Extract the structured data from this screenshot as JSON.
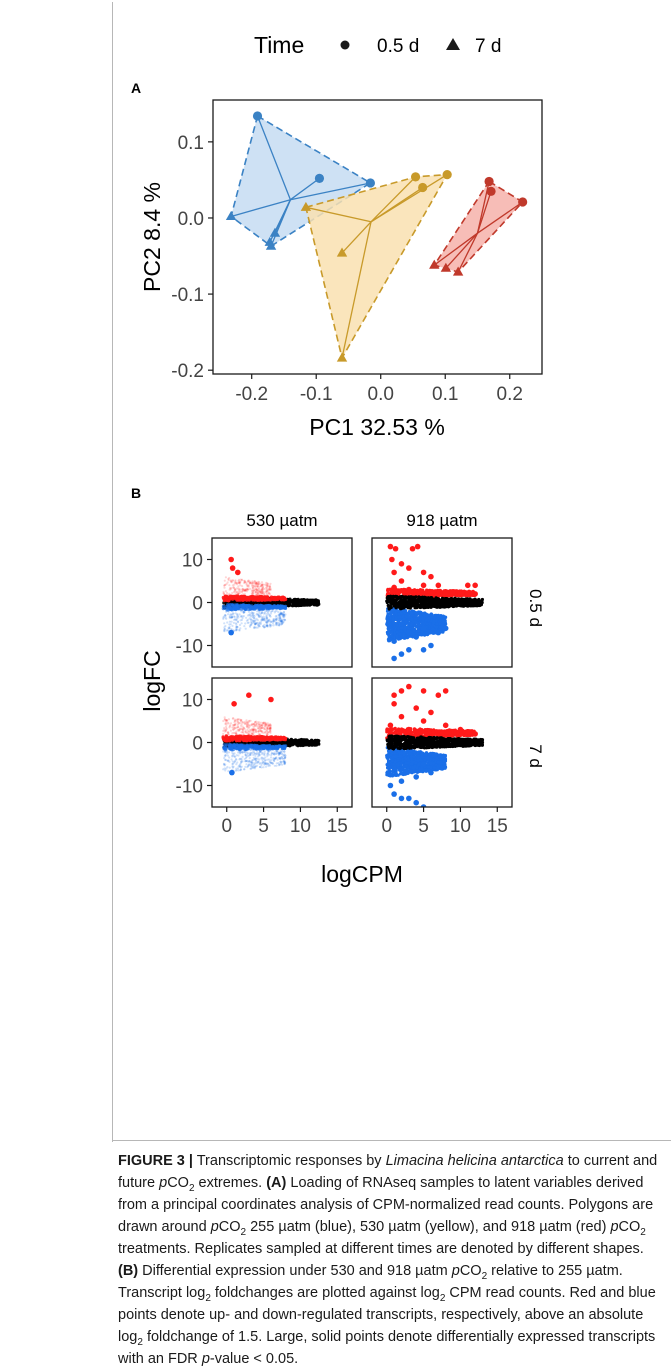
{
  "legend": {
    "title": "Time",
    "items": [
      {
        "shape": "circle",
        "label": "0.5 d"
      },
      {
        "shape": "triangle",
        "label": "7 d"
      }
    ]
  },
  "panel_labels": {
    "a": "A",
    "b": "B"
  },
  "colors": {
    "blue": "#3b82c4",
    "blue_fill": "#c5dcf2",
    "yellow": "#c89a2a",
    "yellow_fill": "#f9e1b0",
    "red": "#c0392b",
    "red_fill": "#f6b1aa",
    "up": "#ff1a1a",
    "down": "#1a6fe8",
    "ns": "#000000"
  },
  "chart_data": [
    {
      "type": "scatter",
      "panel": "A",
      "xlabel": "PC1 32.53 %",
      "ylabel": "PC2 8.4 %",
      "xlim": [
        -0.26,
        0.25
      ],
      "ylim": [
        -0.205,
        0.155
      ],
      "xticks": [
        "-0.2",
        "-0.1",
        "0.0",
        "0.1",
        "0.2"
      ],
      "xtick_values": [
        -0.2,
        -0.1,
        0.0,
        0.1,
        0.2
      ],
      "yticks": [
        "0.1",
        "0.0",
        "-0.1",
        "-0.2"
      ],
      "ytick_values": [
        0.1,
        0.0,
        -0.1,
        -0.2
      ],
      "groups": [
        {
          "color": "blue",
          "hull": [
            [
              -0.191,
              0.134
            ],
            [
              -0.016,
              0.046
            ],
            [
              -0.17,
              -0.037
            ],
            [
              -0.232,
              0.002
            ]
          ],
          "centroid": [
            -0.14,
            0.024
          ],
          "points": [
            {
              "shape": "circle",
              "x": -0.191,
              "y": 0.134
            },
            {
              "shape": "circle",
              "x": -0.095,
              "y": 0.052
            },
            {
              "shape": "circle",
              "x": -0.016,
              "y": 0.046
            },
            {
              "shape": "triangle",
              "x": -0.232,
              "y": 0.002
            },
            {
              "shape": "triangle",
              "x": -0.17,
              "y": -0.037
            },
            {
              "shape": "triangle",
              "x": -0.172,
              "y": -0.032
            },
            {
              "shape": "triangle",
              "x": -0.164,
              "y": -0.02
            }
          ]
        },
        {
          "color": "yellow",
          "hull": [
            [
              -0.116,
              0.014
            ],
            [
              0.054,
              0.054
            ],
            [
              0.103,
              0.057
            ],
            [
              -0.06,
              -0.184
            ]
          ],
          "centroid": [
            -0.015,
            -0.005
          ],
          "points": [
            {
              "shape": "circle",
              "x": 0.054,
              "y": 0.054
            },
            {
              "shape": "circle",
              "x": 0.065,
              "y": 0.04
            },
            {
              "shape": "circle",
              "x": 0.103,
              "y": 0.057
            },
            {
              "shape": "triangle",
              "x": -0.116,
              "y": 0.014
            },
            {
              "shape": "triangle",
              "x": -0.06,
              "y": -0.046
            },
            {
              "shape": "triangle",
              "x": -0.06,
              "y": -0.184
            }
          ]
        },
        {
          "color": "red",
          "hull": [
            [
              0.168,
              0.048
            ],
            [
              0.22,
              0.021
            ],
            [
              0.12,
              -0.071
            ],
            [
              0.083,
              -0.062
            ]
          ],
          "centroid": [
            0.15,
            -0.02
          ],
          "points": [
            {
              "shape": "circle",
              "x": 0.168,
              "y": 0.048
            },
            {
              "shape": "circle",
              "x": 0.171,
              "y": 0.035
            },
            {
              "shape": "circle",
              "x": 0.22,
              "y": 0.021
            },
            {
              "shape": "triangle",
              "x": 0.083,
              "y": -0.062
            },
            {
              "shape": "triangle",
              "x": 0.101,
              "y": -0.066
            },
            {
              "shape": "triangle",
              "x": 0.12,
              "y": -0.071
            }
          ]
        }
      ]
    },
    {
      "type": "scatter",
      "panel": "B",
      "xlabel": "logCPM",
      "ylabel": "logFC",
      "xlim": [
        -2,
        17
      ],
      "ylim": [
        -15,
        15
      ],
      "xticks": [
        "0",
        "5",
        "10",
        "15"
      ],
      "xtick_values": [
        0,
        5,
        10,
        15
      ],
      "yticks": [
        "10",
        "0",
        "-10"
      ],
      "ytick_values": [
        10,
        0,
        -10
      ],
      "column_labels": [
        "530 µatm",
        "918 µatm"
      ],
      "row_labels": [
        "0.5 d",
        "7 d"
      ],
      "facets": [
        {
          "col": 0,
          "row": 0,
          "up_points": [
            [
              0.6,
              10
            ],
            [
              0.8,
              8
            ],
            [
              1.5,
              7
            ]
          ],
          "down_points": [
            [
              0.6,
              -7
            ]
          ],
          "clouds": [
            {
              "color": "up",
              "x": [
                -0.5,
                6
              ],
              "y": [
                0.3,
                6
              ],
              "n": 300,
              "alpha": 0.18
            },
            {
              "color": "down",
              "x": [
                -0.5,
                8
              ],
              "y": [
                -7,
                -0.3
              ],
              "n": 380,
              "alpha": 0.2
            },
            {
              "color": "ns",
              "x": [
                -0.4,
                12.5
              ],
              "y": [
                -1.3,
                1.3
              ],
              "n": 600,
              "alpha": 0.9
            },
            {
              "color": "up",
              "x": [
                -0.5,
                8
              ],
              "y": [
                0.3,
                1.6
              ],
              "n": 250,
              "alpha": 0.9
            },
            {
              "color": "down",
              "x": [
                -0.5,
                8
              ],
              "y": [
                -1.8,
                -0.4
              ],
              "n": 200,
              "alpha": 0.7
            }
          ]
        },
        {
          "col": 1,
          "row": 0,
          "up_points": [
            [
              0.5,
              13
            ],
            [
              1.2,
              12.5
            ],
            [
              3.5,
              12.5
            ],
            [
              4.2,
              13
            ],
            [
              0.7,
              10
            ],
            [
              2,
              9
            ],
            [
              3,
              8
            ],
            [
              1,
              7
            ],
            [
              5,
              7
            ],
            [
              6,
              6
            ],
            [
              2,
              5
            ],
            [
              5,
              4
            ],
            [
              7,
              4
            ],
            [
              11,
              4
            ],
            [
              12,
              4
            ],
            [
              1,
              3.5
            ],
            [
              3,
              3
            ],
            [
              6,
              2.5
            ],
            [
              8,
              2.5
            ],
            [
              9,
              2.5
            ],
            [
              10,
              2
            ],
            [
              11,
              2
            ],
            [
              12,
              2
            ]
          ],
          "down_points": [
            [
              1,
              -13
            ],
            [
              2,
              -12
            ],
            [
              3,
              -11
            ],
            [
              5,
              -11
            ],
            [
              6,
              -10
            ],
            [
              8.5,
              -16
            ],
            [
              1,
              -9
            ],
            [
              4,
              -8
            ],
            [
              3,
              -7
            ],
            [
              5,
              -6
            ],
            [
              7,
              -7
            ],
            [
              8,
              -6
            ],
            [
              2,
              -5
            ]
          ],
          "clouds": [
            {
              "color": "down",
              "x": [
                0,
                8
              ],
              "y": [
                -9,
                -1
              ],
              "n": 900,
              "alpha": 1
            },
            {
              "color": "up",
              "x": [
                0,
                12
              ],
              "y": [
                1.0,
                3.2
              ],
              "n": 400,
              "alpha": 1
            },
            {
              "color": "ns",
              "x": [
                0,
                13
              ],
              "y": [
                -1.6,
                1.6
              ],
              "n": 700,
              "alpha": 1
            }
          ]
        },
        {
          "col": 0,
          "row": 1,
          "up_points": [
            [
              1.0,
              9
            ],
            [
              3,
              11
            ],
            [
              6,
              10
            ]
          ],
          "down_points": [
            [
              0.7,
              -7
            ]
          ],
          "clouds": [
            {
              "color": "up",
              "x": [
                -0.5,
                6
              ],
              "y": [
                0.3,
                6
              ],
              "n": 300,
              "alpha": 0.18
            },
            {
              "color": "down",
              "x": [
                -0.5,
                8
              ],
              "y": [
                -7,
                -0.3
              ],
              "n": 380,
              "alpha": 0.2
            },
            {
              "color": "ns",
              "x": [
                -0.4,
                12.5
              ],
              "y": [
                -1.3,
                1.3
              ],
              "n": 600,
              "alpha": 0.9
            },
            {
              "color": "up",
              "x": [
                -0.5,
                8
              ],
              "y": [
                0.3,
                1.6
              ],
              "n": 250,
              "alpha": 0.9
            },
            {
              "color": "down",
              "x": [
                -0.5,
                8
              ],
              "y": [
                -1.8,
                -0.4
              ],
              "n": 200,
              "alpha": 0.7
            }
          ]
        },
        {
          "col": 1,
          "row": 1,
          "up_points": [
            [
              1,
              11
            ],
            [
              2,
              12
            ],
            [
              3,
              13
            ],
            [
              5,
              12
            ],
            [
              7,
              11
            ],
            [
              8,
              12
            ],
            [
              1,
              9
            ],
            [
              4,
              8
            ],
            [
              6,
              7
            ],
            [
              2,
              6
            ],
            [
              5,
              5
            ],
            [
              8,
              4
            ],
            [
              10,
              3
            ],
            [
              11,
              2.5
            ],
            [
              12,
              2
            ],
            [
              0.5,
              4
            ],
            [
              3,
              3
            ]
          ],
          "down_points": [
            [
              0.5,
              -10
            ],
            [
              1,
              -12
            ],
            [
              2,
              -13
            ],
            [
              3,
              -13
            ],
            [
              4,
              -14
            ],
            [
              5,
              -15
            ],
            [
              2,
              -9
            ],
            [
              4,
              -8
            ],
            [
              6,
              -7
            ],
            [
              1,
              -6
            ],
            [
              5,
              -5
            ]
          ],
          "clouds": [
            {
              "color": "down",
              "x": [
                0,
                8
              ],
              "y": [
                -8,
                -1
              ],
              "n": 850,
              "alpha": 1
            },
            {
              "color": "up",
              "x": [
                0,
                12
              ],
              "y": [
                1.0,
                3.4
              ],
              "n": 380,
              "alpha": 1
            },
            {
              "color": "ns",
              "x": [
                0,
                13
              ],
              "y": [
                -1.6,
                1.6
              ],
              "n": 700,
              "alpha": 1
            }
          ]
        }
      ]
    }
  ],
  "caption": {
    "figure_label": "FIGURE 3 |",
    "t1": " Transcriptomic responses by ",
    "species": "Limacina helicina antarctica",
    "t2": " to current and future ",
    "p1": "p",
    "co1": "CO",
    "s1": "2",
    "t3": " extremes. ",
    "labA": "(A)",
    "t4": " Loading of RNAseq samples to latent variables derived from a principal coordinates analysis of CPM-normalized read counts. Polygons are drawn around ",
    "p2": "p",
    "co2": "CO",
    "s2": "2",
    "t5": " 255 µatm (blue), 530 µatm (yellow), and 918 µatm (red) ",
    "p3": "p",
    "co3": "CO",
    "s3": "2",
    "t6": " treatments. Replicates sampled at different times are denoted by different shapes. ",
    "labB": "(B)",
    "t7": " Differential expression under 530 and 918 µatm ",
    "p4": "p",
    "co4": "CO",
    "s4": "2",
    "t8": " relative to 255 µatm. Transcript log",
    "s5": "2",
    "t9": " foldchanges are plotted against log",
    "s6": "2",
    "t10": " CPM read counts. Red and blue points denote up- and down-regulated transcripts, respectively, above an absolute log",
    "s7": "2",
    "t11": " foldchange of 1.5. Large, solid points denote differentially expressed transcripts with an FDR ",
    "p5": "p",
    "t12": "-value < 0.05."
  }
}
